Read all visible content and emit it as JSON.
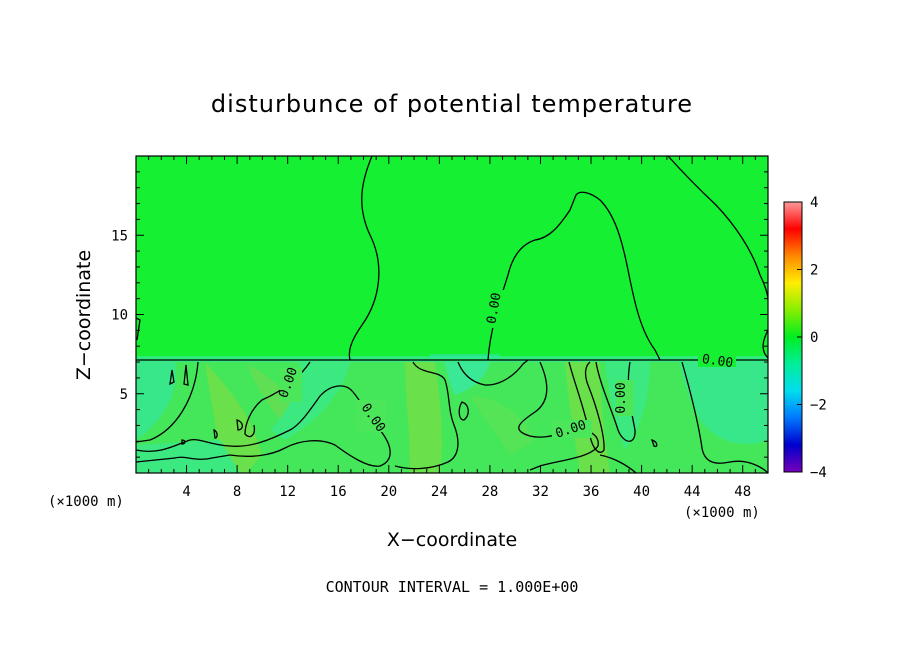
{
  "chart_data": {
    "type": "heatmap",
    "title": "disturbunce of potential temperature",
    "xlabel": "X−coordinate",
    "ylabel": "Z−coordinate",
    "x_unit": "(×1000 m)",
    "z_unit": "(×1000 m)",
    "xlim": [
      0,
      50
    ],
    "zlim": [
      0,
      20
    ],
    "x_ticks": [
      4,
      8,
      12,
      16,
      20,
      24,
      28,
      32,
      36,
      40,
      44,
      48
    ],
    "z_ticks": [
      5,
      10,
      15
    ],
    "colorbar": {
      "range": [
        -4,
        4
      ],
      "ticks": [
        4,
        2,
        0,
        -2,
        -4
      ],
      "colors": [
        "#ff9999",
        "#ff0000",
        "#ff8800",
        "#ffee00",
        "#88ee00",
        "#00ee22",
        "#00ee99",
        "#00ddee",
        "#0077ff",
        "#0000cc",
        "#7700bb"
      ]
    },
    "field_colors": {
      "upper": "#15f132",
      "lower": "#44e65a",
      "lower_light": "#6ae04a",
      "lower_cyan": "#39e78b"
    },
    "contour_labels": [
      "0.00",
      "0.00",
      "0.00",
      "0.00",
      "0.00",
      "0.00",
      "0.00"
    ],
    "footer": "CONTOUR INTERVAL = 1.000E+00"
  }
}
